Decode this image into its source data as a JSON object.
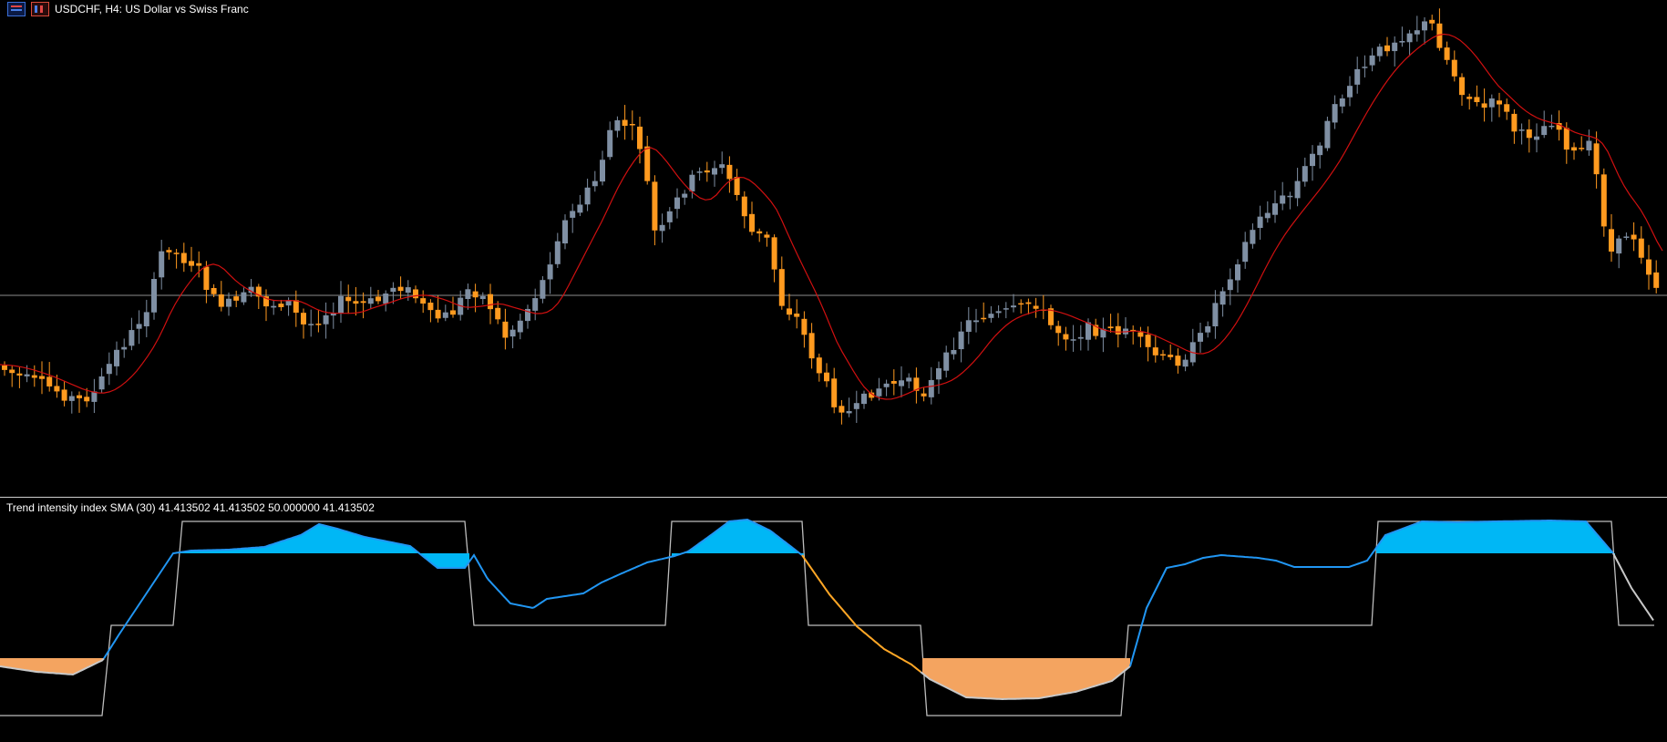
{
  "chart": {
    "symbol_title": "USDCHF, H4:  US Dollar vs Swiss Franc",
    "icons": [
      "indicator-list-icon",
      "objects-list-icon"
    ]
  },
  "indicator": {
    "label": "Trend intensity index SMA (30) 41.413502 41.413502 50.000000 41.413502"
  },
  "colors": {
    "background": "#000000",
    "bull_candle": "#7f8fa3",
    "bear_candle": "#ff9a1f",
    "ma_line": "#d01010",
    "price_line": "#8c8c8c",
    "tii_up": "#2196f3",
    "tii_down": "#ffa726",
    "tii_neutral": "#c8c8c8",
    "fill_up": "#00b7f5",
    "fill_down": "#f4a460",
    "level_line": "#bdbdbd"
  }
}
